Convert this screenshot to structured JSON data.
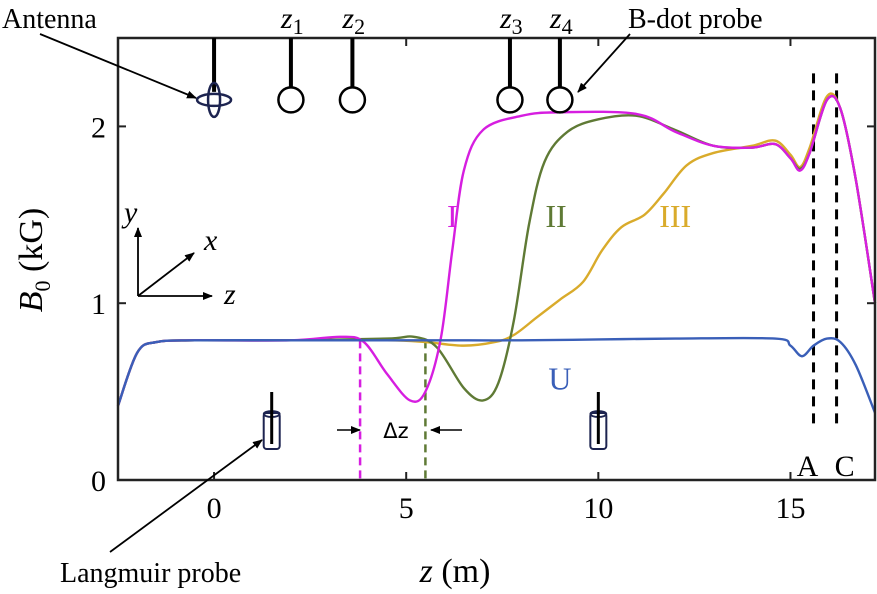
{
  "chart_data": {
    "type": "line",
    "title": "",
    "xlabel_var": "z",
    "xlabel_unit": "(m)",
    "ylabel_var": "B",
    "ylabel_sub": "0",
    "ylabel_unit": "(kG)",
    "xlim": [
      -2.5,
      17.2
    ],
    "ylim": [
      0,
      2.5
    ],
    "xticks": [
      0,
      5,
      10,
      15
    ],
    "yticks": [
      0,
      1,
      2
    ],
    "grid": false,
    "series": [
      {
        "name": "U",
        "color": "#3a5fb8",
        "points": [
          [
            -2.5,
            0.42
          ],
          [
            -2.0,
            0.72
          ],
          [
            -1.5,
            0.78
          ],
          [
            -0.5,
            0.79
          ],
          [
            2,
            0.79
          ],
          [
            4,
            0.79
          ],
          [
            6,
            0.79
          ],
          [
            8,
            0.79
          ],
          [
            10,
            0.795
          ],
          [
            12,
            0.8
          ],
          [
            14.6,
            0.8
          ],
          [
            15.0,
            0.76
          ],
          [
            15.3,
            0.7
          ],
          [
            15.6,
            0.76
          ],
          [
            15.95,
            0.8
          ],
          [
            16.3,
            0.78
          ],
          [
            16.7,
            0.65
          ],
          [
            17.2,
            0.38
          ]
        ]
      },
      {
        "name": "I",
        "color": "#d61ee0",
        "points": [
          [
            -2.5,
            0.42
          ],
          [
            -2.0,
            0.72
          ],
          [
            -1.5,
            0.78
          ],
          [
            -0.5,
            0.79
          ],
          [
            2,
            0.79
          ],
          [
            3.3,
            0.81
          ],
          [
            3.9,
            0.78
          ],
          [
            4.5,
            0.6
          ],
          [
            5.1,
            0.45
          ],
          [
            5.5,
            0.5
          ],
          [
            5.9,
            0.8
          ],
          [
            6.2,
            1.3
          ],
          [
            6.5,
            1.75
          ],
          [
            7.0,
            1.98
          ],
          [
            8,
            2.06
          ],
          [
            9,
            2.08
          ],
          [
            11,
            2.07
          ],
          [
            12,
            1.97
          ],
          [
            13,
            1.89
          ],
          [
            14,
            1.88
          ],
          [
            14.6,
            1.9
          ],
          [
            15.0,
            1.82
          ],
          [
            15.25,
            1.75
          ],
          [
            15.5,
            1.85
          ],
          [
            15.95,
            2.15
          ],
          [
            16.3,
            2.1
          ],
          [
            16.7,
            1.7
          ],
          [
            17.2,
            1.0
          ]
        ]
      },
      {
        "name": "II",
        "color": "#5f7a35",
        "points": [
          [
            -2.5,
            0.42
          ],
          [
            -2.0,
            0.72
          ],
          [
            -1.5,
            0.78
          ],
          [
            -0.5,
            0.79
          ],
          [
            2,
            0.79
          ],
          [
            4.5,
            0.8
          ],
          [
            5.2,
            0.81
          ],
          [
            5.8,
            0.75
          ],
          [
            6.5,
            0.52
          ],
          [
            7.0,
            0.45
          ],
          [
            7.4,
            0.55
          ],
          [
            7.8,
            0.9
          ],
          [
            8.2,
            1.45
          ],
          [
            8.6,
            1.8
          ],
          [
            9.2,
            1.97
          ],
          [
            10,
            2.04
          ],
          [
            11,
            2.06
          ],
          [
            12,
            1.98
          ],
          [
            13,
            1.89
          ],
          [
            14,
            1.88
          ],
          [
            14.6,
            1.9
          ],
          [
            15.0,
            1.82
          ],
          [
            15.25,
            1.76
          ],
          [
            15.5,
            1.85
          ],
          [
            15.95,
            2.15
          ],
          [
            16.3,
            2.1
          ],
          [
            16.7,
            1.7
          ],
          [
            17.2,
            1.0
          ]
        ]
      },
      {
        "name": "III",
        "color": "#d9ab2b",
        "points": [
          [
            -2.5,
            0.42
          ],
          [
            -2.0,
            0.72
          ],
          [
            -1.5,
            0.78
          ],
          [
            -0.5,
            0.79
          ],
          [
            2,
            0.79
          ],
          [
            4.5,
            0.79
          ],
          [
            5.5,
            0.78
          ],
          [
            6.5,
            0.76
          ],
          [
            7.3,
            0.78
          ],
          [
            7.8,
            0.82
          ],
          [
            8.4,
            0.92
          ],
          [
            9.0,
            1.02
          ],
          [
            9.6,
            1.12
          ],
          [
            10.1,
            1.3
          ],
          [
            10.6,
            1.43
          ],
          [
            11.2,
            1.5
          ],
          [
            11.7,
            1.62
          ],
          [
            12.3,
            1.78
          ],
          [
            13,
            1.85
          ],
          [
            14,
            1.89
          ],
          [
            14.6,
            1.92
          ],
          [
            15.0,
            1.84
          ],
          [
            15.25,
            1.77
          ],
          [
            15.5,
            1.88
          ],
          [
            15.95,
            2.17
          ],
          [
            16.3,
            2.1
          ],
          [
            16.7,
            1.7
          ],
          [
            17.2,
            1.0
          ]
        ]
      }
    ],
    "series_label_positions": {
      "I": [
        6.2,
        1.5
      ],
      "II": [
        8.9,
        1.5
      ],
      "III": [
        12.0,
        1.5
      ],
      "U": [
        9.0,
        0.58
      ]
    },
    "vertical_markers": [
      {
        "z": 3.8,
        "color": "#d61ee0",
        "from": 0,
        "to": 0.79
      },
      {
        "z": 5.5,
        "color": "#5f7a35",
        "from": 0,
        "to": 0.79
      }
    ],
    "region_lines": [
      {
        "label": "A",
        "z": 15.6
      },
      {
        "label": "C",
        "z": 16.2
      }
    ],
    "annotations": {
      "antenna": "Antenna",
      "bdot": "B-dot probe",
      "langmuir": "Langmuir probe",
      "delta_z": "Δz",
      "axis_x": "x",
      "axis_y": "y",
      "axis_z": "z"
    },
    "antenna_z": 0,
    "bdot_probes": [
      {
        "var": "z",
        "sub": "1",
        "z": 2.0
      },
      {
        "var": "z",
        "sub": "2",
        "z": 3.6
      },
      {
        "var": "z",
        "sub": "3",
        "z": 7.7
      },
      {
        "var": "z",
        "sub": "4",
        "z": 9.0
      }
    ],
    "langmuir_probes_z": [
      1.5,
      10.0
    ]
  }
}
